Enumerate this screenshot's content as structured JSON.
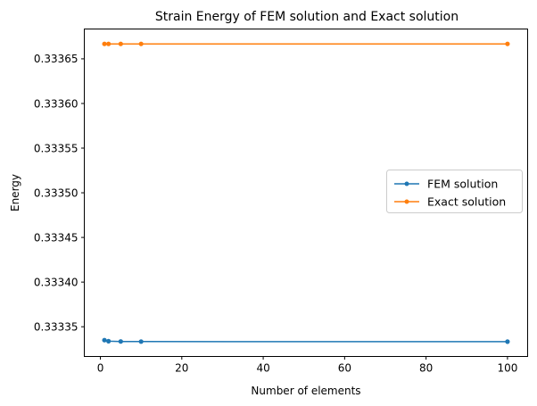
{
  "chart_data": {
    "type": "line",
    "title": "Strain Energy of FEM solution and Exact solution",
    "xlabel": "Number of elements",
    "ylabel": "Energy",
    "x": [
      1,
      2,
      5,
      10,
      100
    ],
    "series": [
      {
        "name": "FEM solution",
        "color": "#1f77b4",
        "values": [
          0.333335,
          0.3333338,
          0.3333335,
          0.3333334,
          0.3333333
        ]
      },
      {
        "name": "Exact solution",
        "color": "#ff7f0e",
        "values": [
          0.3336667,
          0.3336667,
          0.3336667,
          0.3336667,
          0.3336667
        ]
      }
    ],
    "xlim": [
      -3.95,
      104.95
    ],
    "ylim": [
      0.3333167,
      0.3336834
    ],
    "xticks": [
      0,
      20,
      40,
      60,
      80,
      100
    ],
    "yticks": [
      0.33335,
      0.3334,
      0.33345,
      0.3335,
      0.33355,
      0.3336,
      0.33365
    ],
    "ytick_labels": [
      "0.33335",
      "0.33340",
      "0.33345",
      "0.33350",
      "0.33355",
      "0.33360",
      "0.33365"
    ],
    "grid": false,
    "legend_position": "center-right",
    "marker": "dot"
  }
}
